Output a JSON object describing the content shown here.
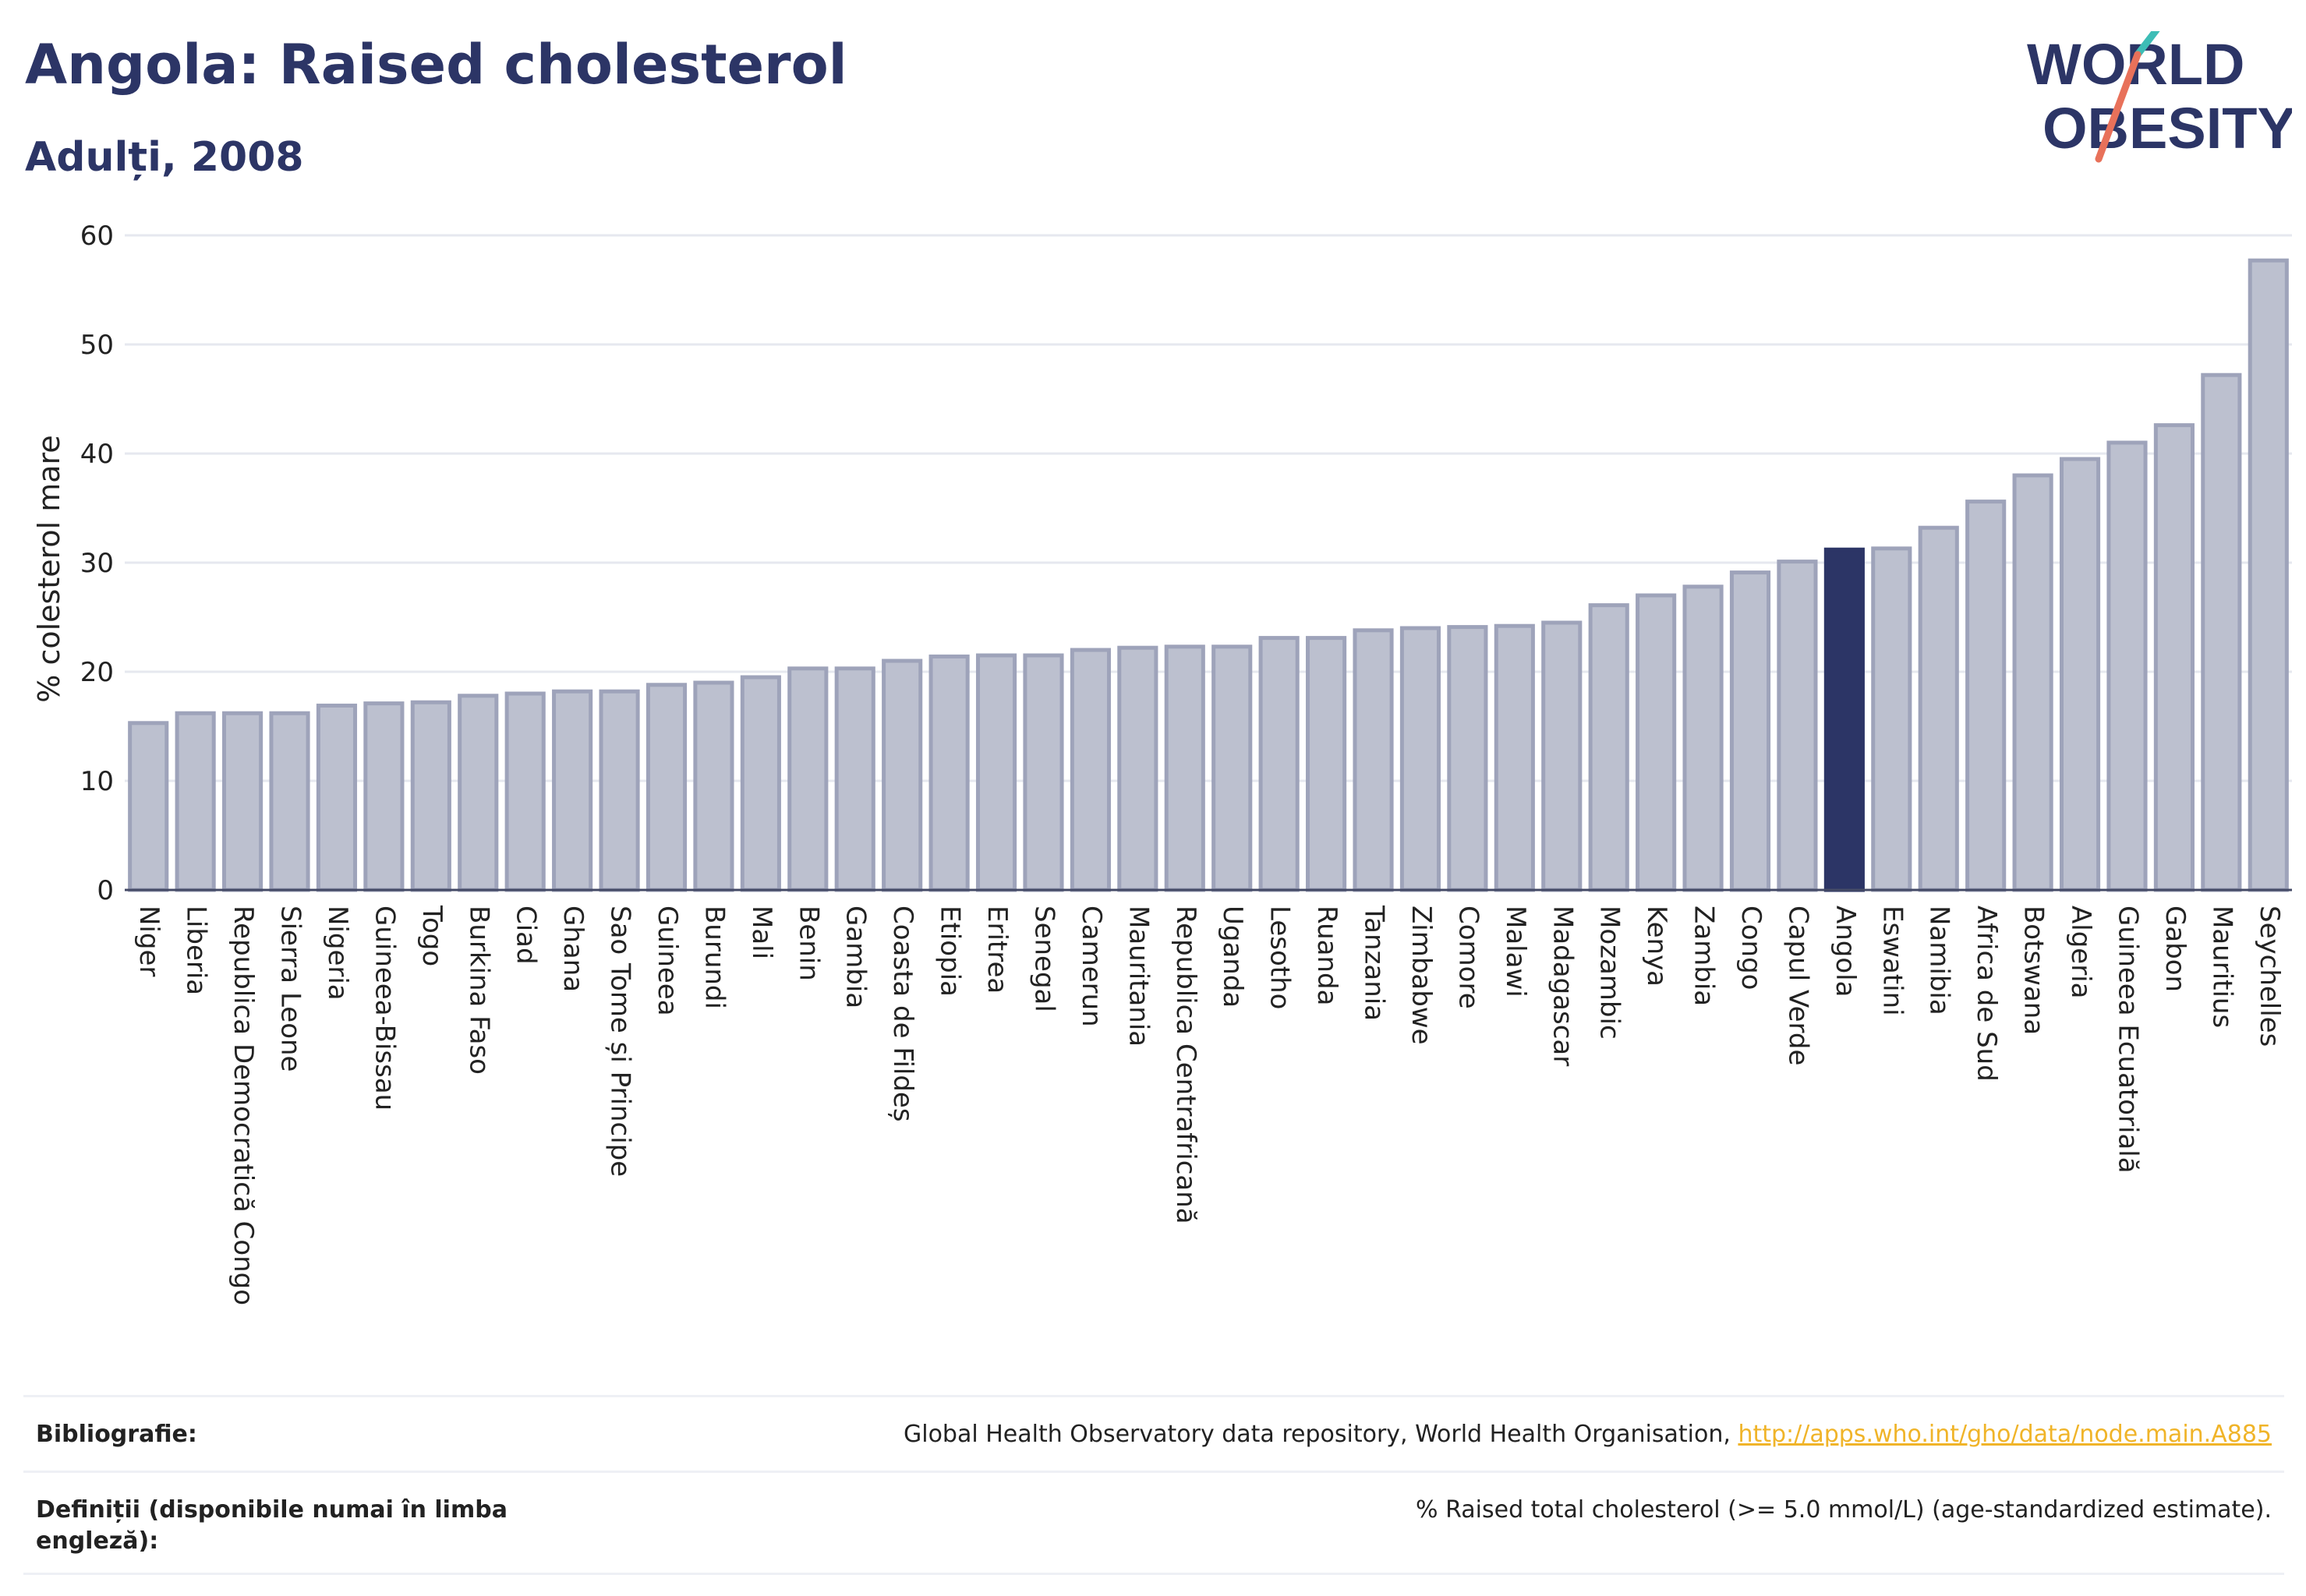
{
  "header": {
    "title": "Angola: Raised cholesterol",
    "subtitle": "Adulți, 2008"
  },
  "logo": {
    "line1": "WORLD",
    "line2": "OBESITY",
    "slash_colors": [
      "#3dbdb6",
      "#e8715a"
    ]
  },
  "chart_data": {
    "type": "bar",
    "title": "Angola: Raised cholesterol",
    "subtitle": "Adulți, 2008",
    "xlabel": "",
    "ylabel": "% colesterol mare",
    "ylim": [
      0,
      60
    ],
    "yticks": [
      0,
      10,
      20,
      30,
      40,
      50,
      60
    ],
    "grid": true,
    "highlight": "Angola",
    "colors": {
      "bar": "#bcc0cf",
      "bar_edge": "#9ea3ba",
      "highlight": "#2c3566",
      "grid": "#e6e8ef"
    },
    "categories": [
      "Niger",
      "Liberia",
      "Republica Democratică Congo",
      "Sierra Leone",
      "Nigeria",
      "Guineea-Bissau",
      "Togo",
      "Burkina Faso",
      "Ciad",
      "Ghana",
      "Sao Tome și Principe",
      "Guineea",
      "Burundi",
      "Mali",
      "Benin",
      "Gambia",
      "Coasta de Fildeș",
      "Etiopia",
      "Eritrea",
      "Senegal",
      "Camerun",
      "Mauritania",
      "Republica Centrafricană",
      "Uganda",
      "Lesotho",
      "Ruanda",
      "Tanzania",
      "Zimbabwe",
      "Comore",
      "Malawi",
      "Madagascar",
      "Mozambic",
      "Kenya",
      "Zambia",
      "Congo",
      "Capul Verde",
      "Angola",
      "Eswatini",
      "Namibia",
      "Africa de Sud",
      "Botswana",
      "Algeria",
      "Guineea Ecuatorială",
      "Gabon",
      "Mauritius",
      "Seychelles"
    ],
    "values": [
      15.3,
      16.2,
      16.2,
      16.2,
      16.9,
      17.1,
      17.2,
      17.8,
      18.0,
      18.2,
      18.2,
      18.8,
      19.0,
      19.5,
      20.3,
      20.3,
      21.0,
      21.4,
      21.5,
      21.5,
      22.0,
      22.2,
      22.3,
      22.3,
      23.1,
      23.1,
      23.8,
      24.0,
      24.1,
      24.2,
      24.5,
      26.1,
      27.0,
      27.8,
      29.1,
      30.1,
      31.2,
      31.3,
      33.2,
      35.6,
      38.0,
      39.5,
      41.0,
      42.6,
      47.2,
      57.7
    ]
  },
  "footer": {
    "bibliography_label": "Bibliografie:",
    "bibliography_text": "Global Health Observatory data repository, World Health Organisation,",
    "bibliography_link": "http://apps.who.int/gho/data/node.main.A885",
    "definitions_label": "Definiții (disponibile numai în limba engleză):",
    "definitions_text": "% Raised total cholesterol (>= 5.0 mmol/L) (age-standardized estimate)."
  }
}
